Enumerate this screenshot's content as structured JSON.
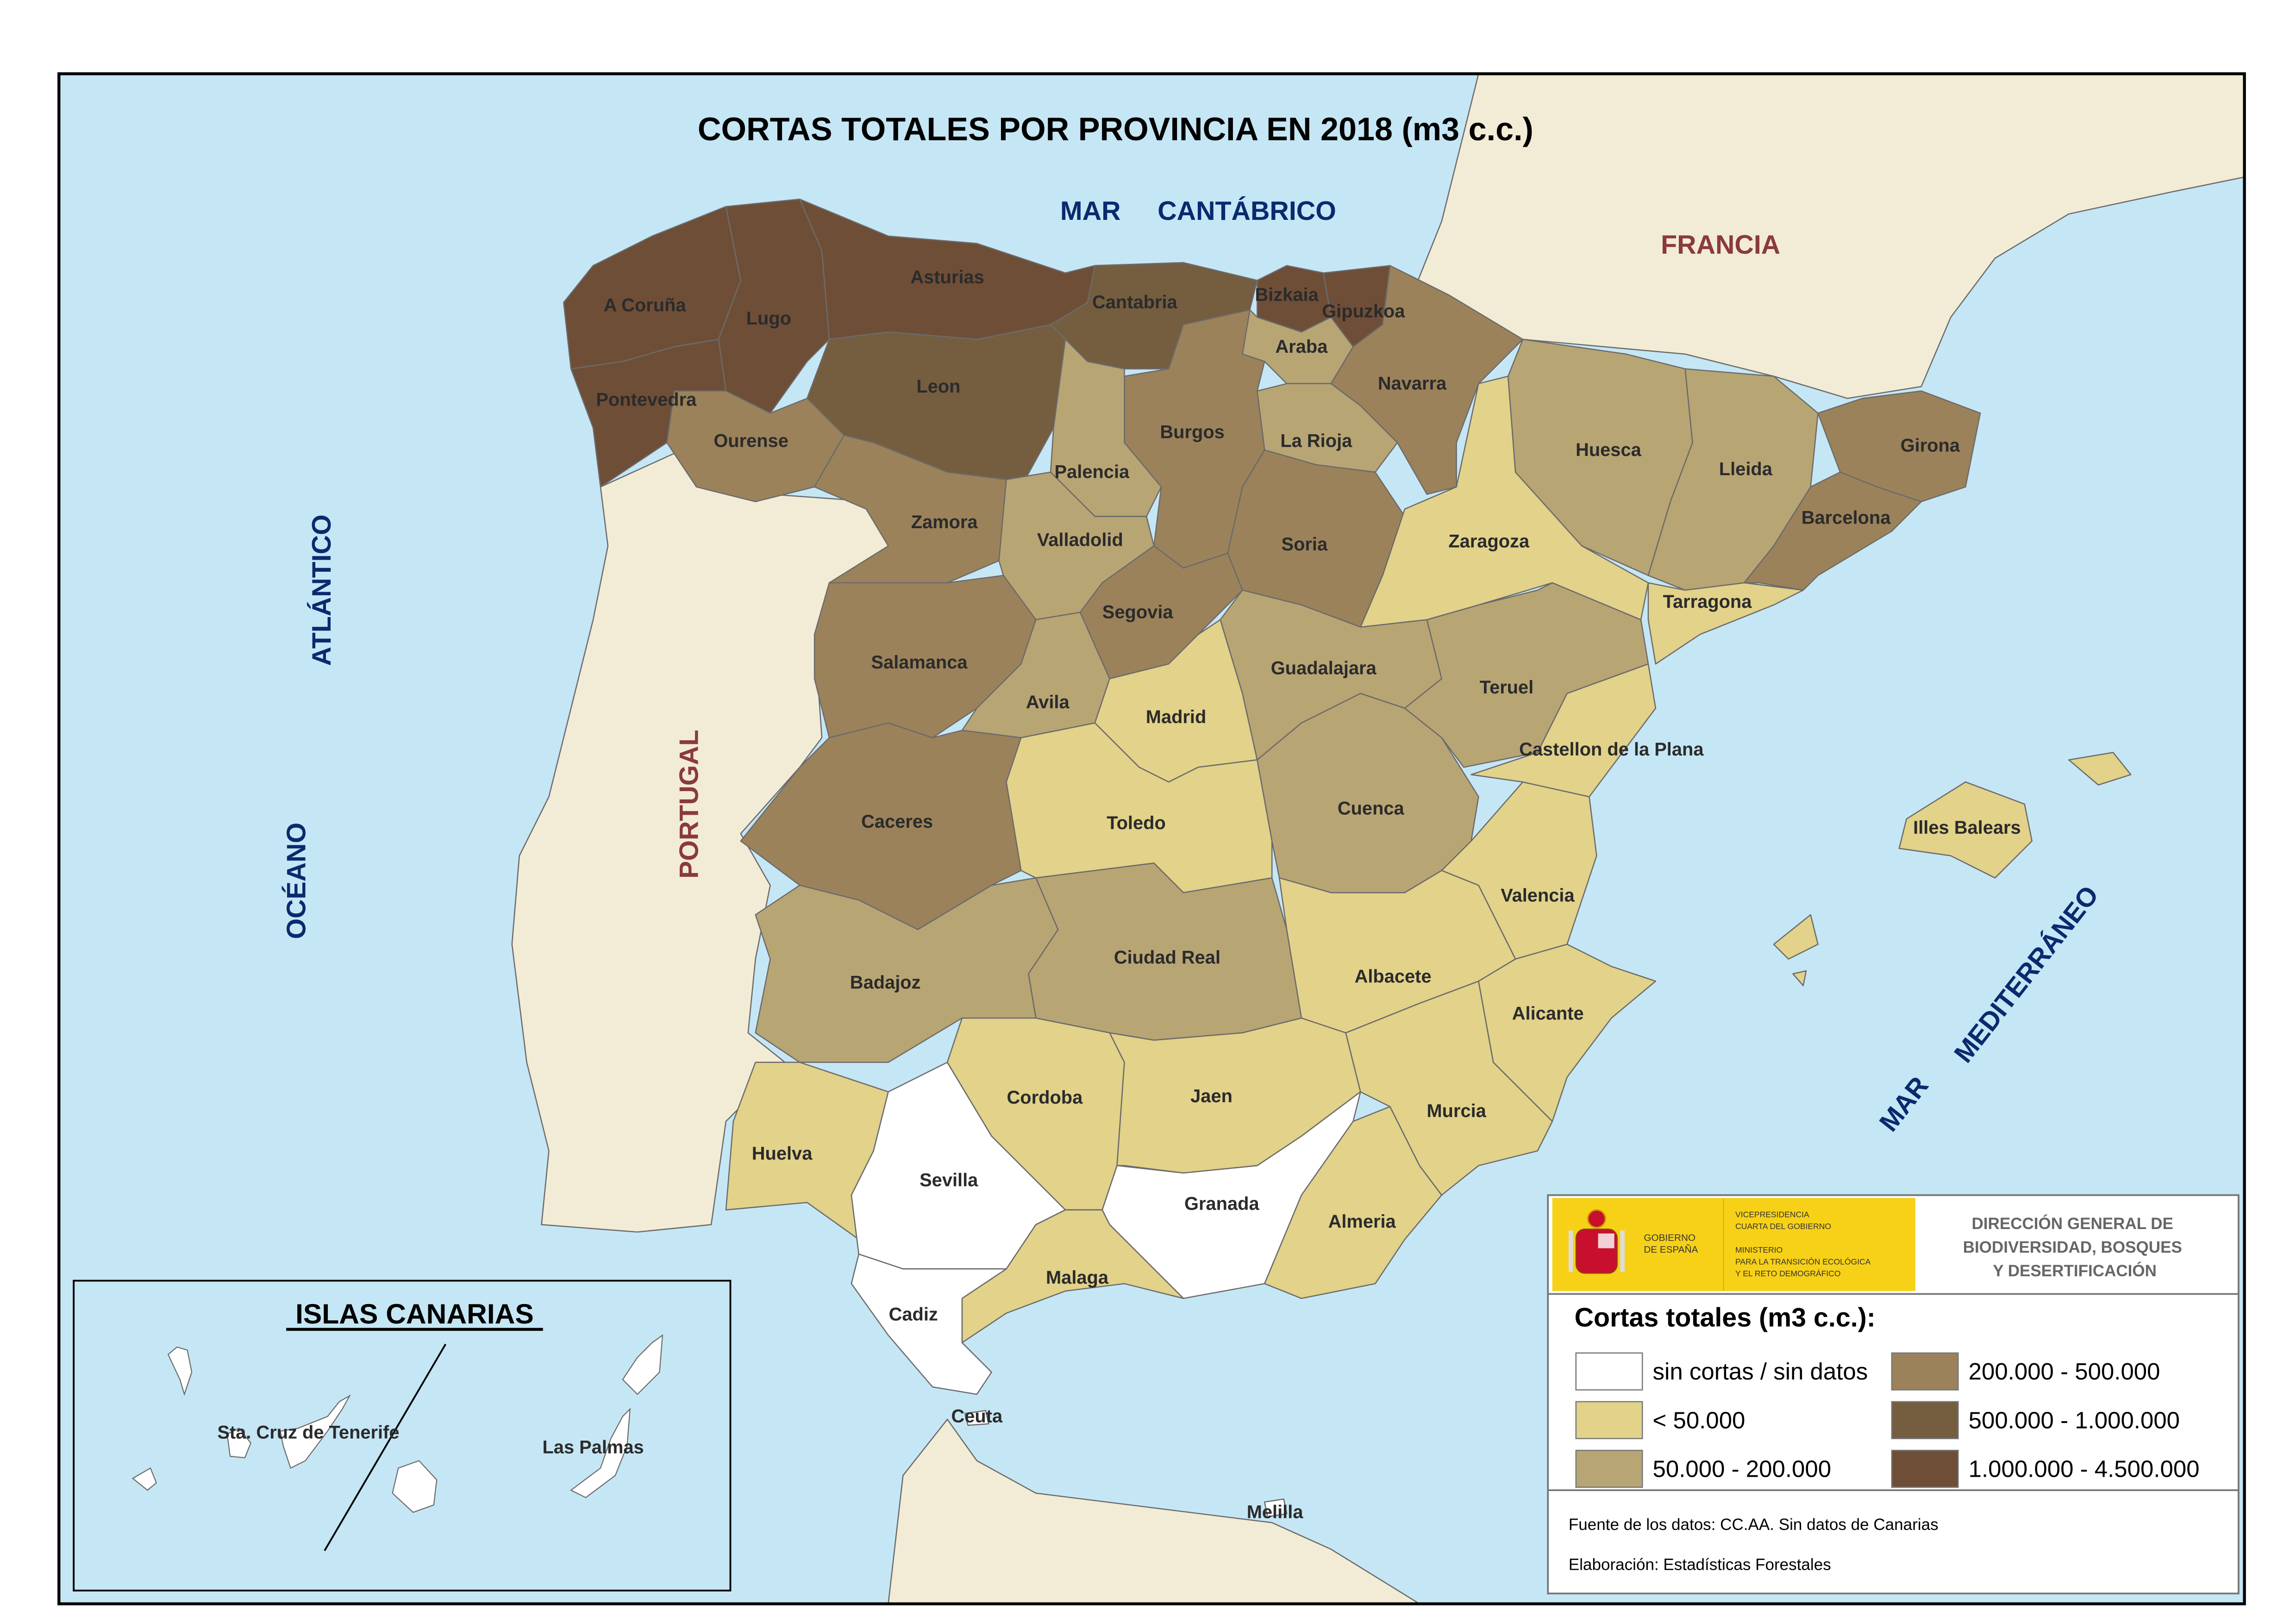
{
  "title": "CORTAS TOTALES POR PROVINCIA EN 2018 (m3 c.c.)",
  "colors": {
    "sea": "#c5e6f5",
    "foreign_land": "#f2ecd6",
    "border": "#6b6b6b",
    "sea_label": "#0a2a6e",
    "country_label": "#8b3a3a",
    "logo_yellow": "#f7d117"
  },
  "sea_labels": {
    "mar_cantabrico_1": "MAR",
    "mar_cantabrico_2": "CANTÁBRICO",
    "oceano": "OCÉANO",
    "atlantico": "ATLÁNTICO",
    "mar_med_1": "MAR",
    "mar_med_2": "MEDITERRÁNEO"
  },
  "country_labels": {
    "francia": "FRANCIA",
    "portugal": "PORTUGAL"
  },
  "legend": {
    "title": "Cortas totales (m3 c.c.):",
    "classes": [
      {
        "id": "c0",
        "label": "sin cortas / sin datos",
        "color": "#ffffff"
      },
      {
        "id": "c1",
        "label": "< 50.000",
        "color": "#e2d28a"
      },
      {
        "id": "c2",
        "label": "50.000 - 200.000",
        "color": "#b8a574"
      },
      {
        "id": "c3",
        "label": "200.000 - 500.000",
        "color": "#9b825a"
      },
      {
        "id": "c4",
        "label": "500.000 - 1.000.000",
        "color": "#755d40"
      },
      {
        "id": "c5",
        "label": "1.000.000 - 4.500.000",
        "color": "#6f4e37"
      }
    ],
    "source": "Fuente de los datos: CC.AA. Sin datos de Canarias",
    "author": "Elaboración: Estadísticas Forestales"
  },
  "header_logo": {
    "gobierno": [
      "GOBIERNO",
      "DE ESPAÑA"
    ],
    "ministerio": [
      "VICEPRESIDENCIA",
      "CUARTA DEL GOBIERNO",
      "MINISTERIO",
      "PARA LA TRANSICIÓN ECOLÓGICA",
      "Y EL RETO DEMOGRÁFICO"
    ],
    "direccion": [
      "DIRECCIÓN GENERAL DE",
      "BIODIVERSIDAD, BOSQUES",
      "Y DESERTIFICACIÓN"
    ]
  },
  "canarias": {
    "title": "ISLAS CANARIAS",
    "provinces": [
      {
        "name": "Sta. Cruz de Tenerife",
        "class": "c0"
      },
      {
        "name": "Las Palmas",
        "class": "c0"
      }
    ]
  },
  "provinces": [
    {
      "name": "A Coruña",
      "class": "c5"
    },
    {
      "name": "Lugo",
      "class": "c5"
    },
    {
      "name": "Asturias",
      "class": "c5"
    },
    {
      "name": "Pontevedra",
      "class": "c5"
    },
    {
      "name": "Ourense",
      "class": "c3"
    },
    {
      "name": "Leon",
      "class": "c4"
    },
    {
      "name": "Cantabria",
      "class": "c4"
    },
    {
      "name": "Bizkaia",
      "class": "c5"
    },
    {
      "name": "Gipuzkoa",
      "class": "c5"
    },
    {
      "name": "Araba",
      "class": "c2"
    },
    {
      "name": "Navarra",
      "class": "c3"
    },
    {
      "name": "La Rioja",
      "class": "c2"
    },
    {
      "name": "Burgos",
      "class": "c3"
    },
    {
      "name": "Palencia",
      "class": "c2"
    },
    {
      "name": "Zamora",
      "class": "c3"
    },
    {
      "name": "Valladolid",
      "class": "c2"
    },
    {
      "name": "Soria",
      "class": "c3"
    },
    {
      "name": "Segovia",
      "class": "c3"
    },
    {
      "name": "Salamanca",
      "class": "c3"
    },
    {
      "name": "Avila",
      "class": "c2"
    },
    {
      "name": "Madrid",
      "class": "c1"
    },
    {
      "name": "Guadalajara",
      "class": "c2"
    },
    {
      "name": "Caceres",
      "class": "c3"
    },
    {
      "name": "Toledo",
      "class": "c1"
    },
    {
      "name": "Cuenca",
      "class": "c2"
    },
    {
      "name": "Ciudad Real",
      "class": "c2"
    },
    {
      "name": "Badajoz",
      "class": "c2"
    },
    {
      "name": "Huelva",
      "class": "c1"
    },
    {
      "name": "Sevilla",
      "class": "c0"
    },
    {
      "name": "Cordoba",
      "class": "c1"
    },
    {
      "name": "Jaen",
      "class": "c1"
    },
    {
      "name": "Granada",
      "class": "c0"
    },
    {
      "name": "Malaga",
      "class": "c1"
    },
    {
      "name": "Cadiz",
      "class": "c0"
    },
    {
      "name": "Almeria",
      "class": "c1"
    },
    {
      "name": "Murcia",
      "class": "c1"
    },
    {
      "name": "Albacete",
      "class": "c1"
    },
    {
      "name": "Valencia",
      "class": "c1"
    },
    {
      "name": "Alicante",
      "class": "c1"
    },
    {
      "name": "Teruel",
      "class": "c2"
    },
    {
      "name": "Castellon de la Plana",
      "class": "c1"
    },
    {
      "name": "Zaragoza",
      "class": "c1"
    },
    {
      "name": "Huesca",
      "class": "c2"
    },
    {
      "name": "Lleida",
      "class": "c2"
    },
    {
      "name": "Girona",
      "class": "c3"
    },
    {
      "name": "Barcelona",
      "class": "c3"
    },
    {
      "name": "Tarragona",
      "class": "c1"
    },
    {
      "name": "Illes Balears",
      "class": "c1"
    },
    {
      "name": "Ceuta",
      "class": "c0"
    },
    {
      "name": "Melilla",
      "class": "c0"
    }
  ]
}
